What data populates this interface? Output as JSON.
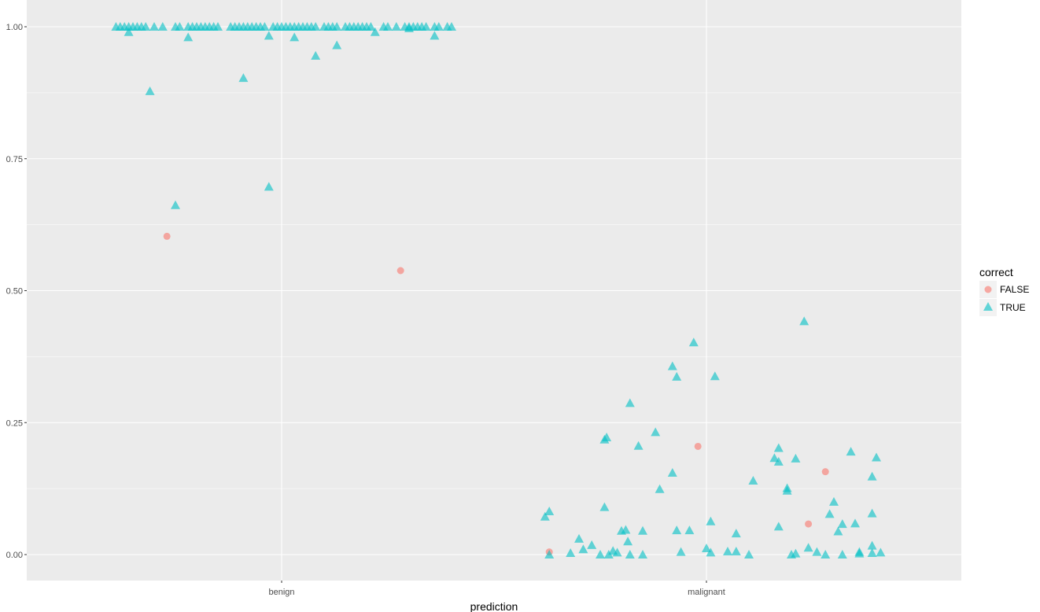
{
  "chart_data": {
    "type": "scatter",
    "title": "",
    "xlabel": "prediction",
    "ylabel": "",
    "categories": [
      "benign",
      "malignant"
    ],
    "ylim": [
      -0.048,
      1.048
    ],
    "y_ticks": [
      "0.00",
      "0.25",
      "0.50",
      "0.75",
      "1.00"
    ],
    "y_tick_values": [
      0,
      0.25,
      0.5,
      0.75,
      1.0
    ],
    "grid": true,
    "background": "#EBEBEB",
    "legend": {
      "title": "correct",
      "placement": "right",
      "entries": [
        {
          "label": "FALSE",
          "shape": "circle",
          "color": "#F8766D"
        },
        {
          "label": "TRUE",
          "shape": "triangle",
          "color": "#00BFC4"
        }
      ]
    },
    "series": [
      {
        "name": "FALSE",
        "color": "#F8766D",
        "shape": "circle",
        "points": [
          {
            "x": -0.27,
            "y": 0.603
          },
          {
            "x": 0.28,
            "y": 0.538
          },
          {
            "x": 0.63,
            "y": 0.005
          },
          {
            "x": 0.98,
            "y": 0.205
          },
          {
            "x": 1.24,
            "y": 0.058
          },
          {
            "x": 1.28,
            "y": 0.157
          }
        ]
      },
      {
        "name": "TRUE",
        "color": "#00BFC4",
        "shape": "triangle",
        "points": [
          {
            "x": -0.39,
            "y": 1.0
          },
          {
            "x": -0.38,
            "y": 1.0
          },
          {
            "x": -0.37,
            "y": 1.0
          },
          {
            "x": -0.36,
            "y": 1.0
          },
          {
            "x": -0.35,
            "y": 1.0
          },
          {
            "x": -0.34,
            "y": 1.0
          },
          {
            "x": -0.33,
            "y": 1.0
          },
          {
            "x": -0.32,
            "y": 1.0
          },
          {
            "x": -0.3,
            "y": 1.0
          },
          {
            "x": -0.28,
            "y": 1.0
          },
          {
            "x": -0.25,
            "y": 1.0
          },
          {
            "x": -0.24,
            "y": 1.0
          },
          {
            "x": -0.22,
            "y": 1.0
          },
          {
            "x": -0.21,
            "y": 1.0
          },
          {
            "x": -0.2,
            "y": 1.0
          },
          {
            "x": -0.19,
            "y": 1.0
          },
          {
            "x": -0.18,
            "y": 1.0
          },
          {
            "x": -0.17,
            "y": 1.0
          },
          {
            "x": -0.16,
            "y": 1.0
          },
          {
            "x": -0.15,
            "y": 1.0
          },
          {
            "x": -0.12,
            "y": 1.0
          },
          {
            "x": -0.11,
            "y": 1.0
          },
          {
            "x": -0.1,
            "y": 1.0
          },
          {
            "x": -0.09,
            "y": 1.0
          },
          {
            "x": -0.08,
            "y": 1.0
          },
          {
            "x": -0.07,
            "y": 1.0
          },
          {
            "x": -0.06,
            "y": 1.0
          },
          {
            "x": -0.05,
            "y": 1.0
          },
          {
            "x": -0.04,
            "y": 1.0
          },
          {
            "x": -0.02,
            "y": 1.0
          },
          {
            "x": -0.01,
            "y": 1.0
          },
          {
            "x": 0.0,
            "y": 1.0
          },
          {
            "x": 0.01,
            "y": 1.0
          },
          {
            "x": 0.02,
            "y": 1.0
          },
          {
            "x": 0.03,
            "y": 1.0
          },
          {
            "x": 0.04,
            "y": 1.0
          },
          {
            "x": 0.05,
            "y": 1.0
          },
          {
            "x": 0.06,
            "y": 1.0
          },
          {
            "x": 0.07,
            "y": 1.0
          },
          {
            "x": 0.08,
            "y": 1.0
          },
          {
            "x": 0.1,
            "y": 1.0
          },
          {
            "x": 0.11,
            "y": 1.0
          },
          {
            "x": 0.12,
            "y": 1.0
          },
          {
            "x": 0.13,
            "y": 1.0
          },
          {
            "x": 0.15,
            "y": 1.0
          },
          {
            "x": 0.16,
            "y": 1.0
          },
          {
            "x": 0.17,
            "y": 1.0
          },
          {
            "x": 0.18,
            "y": 1.0
          },
          {
            "x": 0.19,
            "y": 1.0
          },
          {
            "x": 0.2,
            "y": 1.0
          },
          {
            "x": 0.21,
            "y": 1.0
          },
          {
            "x": 0.24,
            "y": 1.0
          },
          {
            "x": 0.25,
            "y": 1.0
          },
          {
            "x": 0.27,
            "y": 1.0
          },
          {
            "x": 0.29,
            "y": 1.0
          },
          {
            "x": 0.3,
            "y": 1.0
          },
          {
            "x": 0.31,
            "y": 1.0
          },
          {
            "x": 0.32,
            "y": 1.0
          },
          {
            "x": 0.33,
            "y": 1.0
          },
          {
            "x": 0.34,
            "y": 1.0
          },
          {
            "x": 0.36,
            "y": 1.0
          },
          {
            "x": 0.37,
            "y": 1.0
          },
          {
            "x": 0.39,
            "y": 1.0
          },
          {
            "x": 0.4,
            "y": 1.0
          },
          {
            "x": -0.36,
            "y": 0.99
          },
          {
            "x": -0.22,
            "y": 0.98
          },
          {
            "x": -0.03,
            "y": 0.983
          },
          {
            "x": 0.03,
            "y": 0.98
          },
          {
            "x": 0.08,
            "y": 0.945
          },
          {
            "x": 0.13,
            "y": 0.965
          },
          {
            "x": 0.22,
            "y": 0.99
          },
          {
            "x": 0.3,
            "y": 0.997
          },
          {
            "x": 0.36,
            "y": 0.983
          },
          {
            "x": -0.31,
            "y": 0.878
          },
          {
            "x": -0.09,
            "y": 0.903
          },
          {
            "x": -0.25,
            "y": 0.662
          },
          {
            "x": -0.03,
            "y": 0.697
          },
          {
            "x": 0.62,
            "y": 0.072
          },
          {
            "x": 0.63,
            "y": 0.082
          },
          {
            "x": 0.63,
            "y": 0.0
          },
          {
            "x": 0.68,
            "y": 0.003
          },
          {
            "x": 0.7,
            "y": 0.03
          },
          {
            "x": 0.71,
            "y": 0.01
          },
          {
            "x": 0.73,
            "y": 0.018
          },
          {
            "x": 0.75,
            "y": 0.0
          },
          {
            "x": 0.76,
            "y": 0.09
          },
          {
            "x": 0.76,
            "y": 0.218
          },
          {
            "x": 0.765,
            "y": 0.222
          },
          {
            "x": 0.77,
            "y": 0.0
          },
          {
            "x": 0.78,
            "y": 0.007
          },
          {
            "x": 0.79,
            "y": 0.004
          },
          {
            "x": 0.8,
            "y": 0.045
          },
          {
            "x": 0.81,
            "y": 0.047
          },
          {
            "x": 0.815,
            "y": 0.025
          },
          {
            "x": 0.82,
            "y": 0.0
          },
          {
            "x": 0.82,
            "y": 0.287
          },
          {
            "x": 0.84,
            "y": 0.206
          },
          {
            "x": 0.85,
            "y": 0.045
          },
          {
            "x": 0.85,
            "y": 0.0
          },
          {
            "x": 0.88,
            "y": 0.232
          },
          {
            "x": 0.89,
            "y": 0.124
          },
          {
            "x": 0.92,
            "y": 0.155
          },
          {
            "x": 0.92,
            "y": 0.357
          },
          {
            "x": 0.93,
            "y": 0.337
          },
          {
            "x": 0.93,
            "y": 0.046
          },
          {
            "x": 0.94,
            "y": 0.005
          },
          {
            "x": 0.96,
            "y": 0.046
          },
          {
            "x": 0.97,
            "y": 0.402
          },
          {
            "x": 1.0,
            "y": 0.012
          },
          {
            "x": 1.01,
            "y": 0.063
          },
          {
            "x": 1.01,
            "y": 0.004
          },
          {
            "x": 1.02,
            "y": 0.338
          },
          {
            "x": 1.05,
            "y": 0.006
          },
          {
            "x": 1.07,
            "y": 0.04
          },
          {
            "x": 1.07,
            "y": 0.006
          },
          {
            "x": 1.1,
            "y": 0.0
          },
          {
            "x": 1.11,
            "y": 0.14
          },
          {
            "x": 1.16,
            "y": 0.183
          },
          {
            "x": 1.17,
            "y": 0.202
          },
          {
            "x": 1.17,
            "y": 0.176
          },
          {
            "x": 1.17,
            "y": 0.053
          },
          {
            "x": 1.19,
            "y": 0.126
          },
          {
            "x": 1.19,
            "y": 0.121
          },
          {
            "x": 1.2,
            "y": 0.0
          },
          {
            "x": 1.21,
            "y": 0.182
          },
          {
            "x": 1.21,
            "y": 0.002
          },
          {
            "x": 1.23,
            "y": 0.442
          },
          {
            "x": 1.24,
            "y": 0.013
          },
          {
            "x": 1.26,
            "y": 0.005
          },
          {
            "x": 1.28,
            "y": 0.0
          },
          {
            "x": 1.29,
            "y": 0.077
          },
          {
            "x": 1.3,
            "y": 0.1
          },
          {
            "x": 1.31,
            "y": 0.044
          },
          {
            "x": 1.32,
            "y": 0.058
          },
          {
            "x": 1.32,
            "y": 0.0
          },
          {
            "x": 1.34,
            "y": 0.195
          },
          {
            "x": 1.35,
            "y": 0.059
          },
          {
            "x": 1.36,
            "y": 0.005
          },
          {
            "x": 1.36,
            "y": 0.002
          },
          {
            "x": 1.39,
            "y": 0.017
          },
          {
            "x": 1.39,
            "y": 0.078
          },
          {
            "x": 1.39,
            "y": 0.148
          },
          {
            "x": 1.4,
            "y": 0.184
          },
          {
            "x": 1.39,
            "y": 0.003
          },
          {
            "x": 1.41,
            "y": 0.004
          }
        ]
      }
    ]
  }
}
